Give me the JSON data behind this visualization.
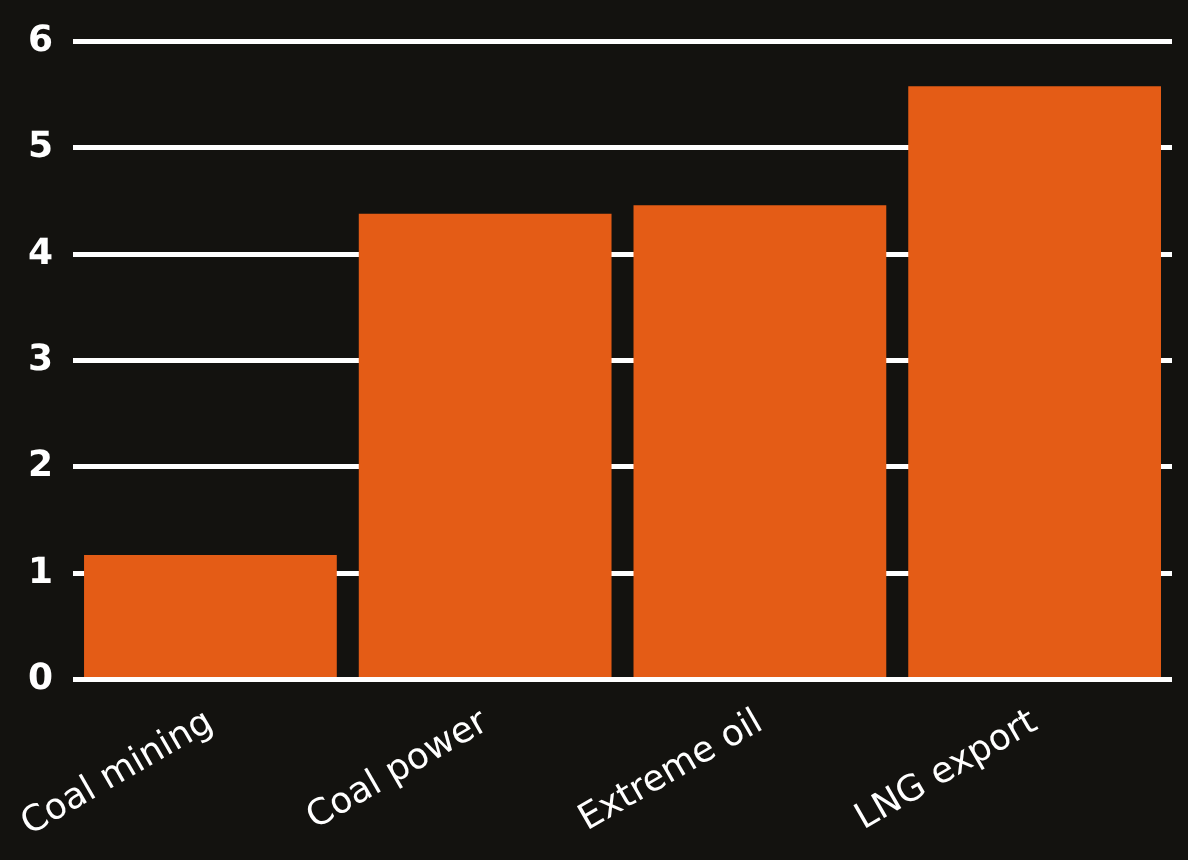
{
  "chart_data": {
    "type": "bar",
    "categories": [
      "Coal mining",
      "Coal power",
      "Extreme oil",
      "LNG export"
    ],
    "values": [
      1.17,
      4.38,
      4.46,
      5.58
    ],
    "color": "#e45c16",
    "ylim": [
      0,
      6
    ],
    "yticks": [
      0,
      1,
      2,
      3,
      4,
      5,
      6
    ],
    "grid": "y"
  }
}
